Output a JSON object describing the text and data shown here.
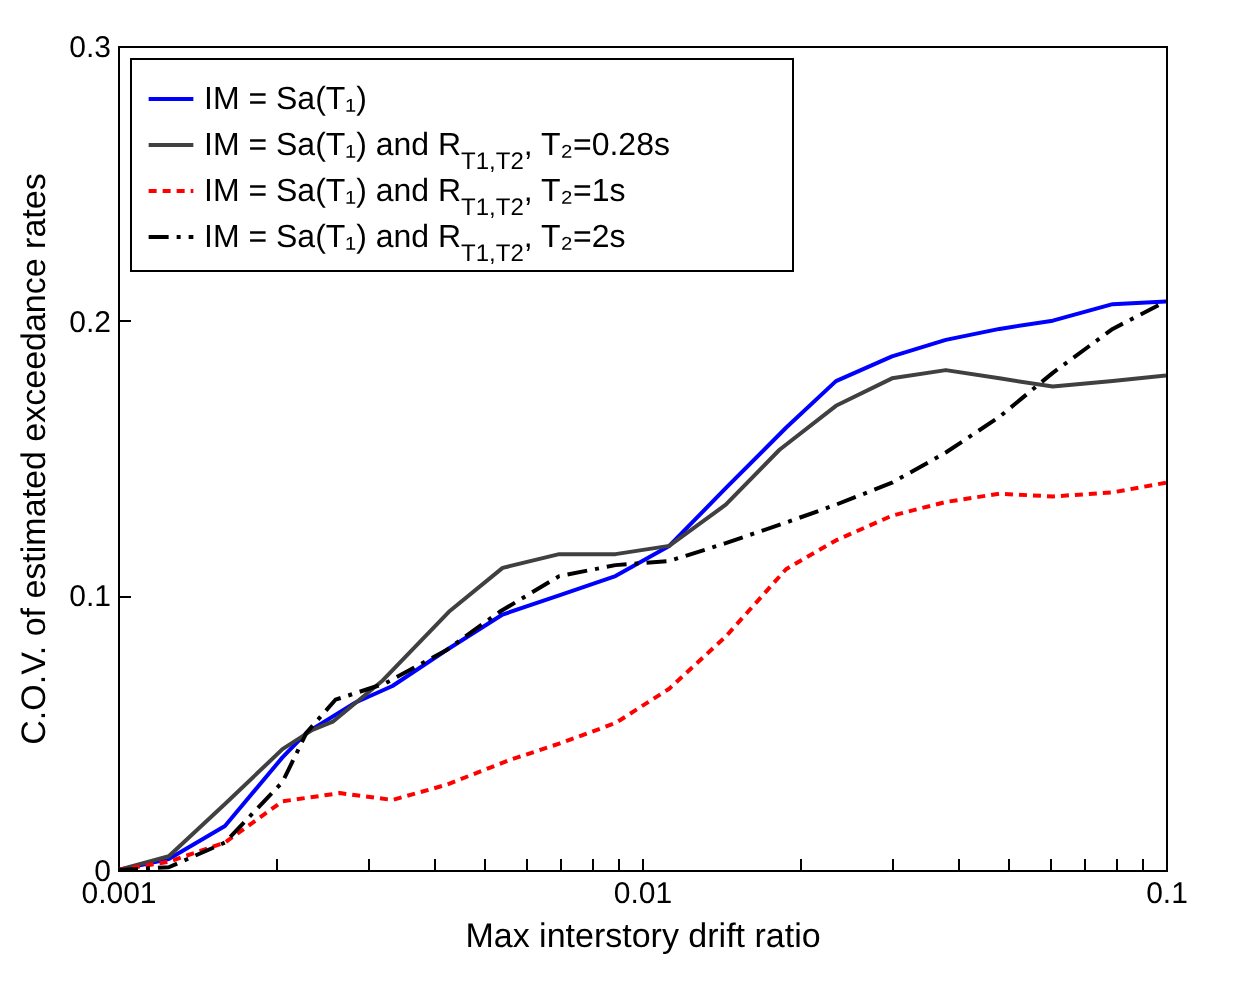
{
  "chart_data": {
    "type": "line",
    "xlabel": "Max interstory drift ratio",
    "ylabel": "C.O.V. of estimated exceedance rates",
    "log": "x",
    "xlim": [
      0.001,
      0.1
    ],
    "ylim": [
      0,
      0.3
    ],
    "xticks": [
      0.001,
      {
        "value": 0.002,
        "label": null
      },
      {
        "value": 0.003,
        "label": null
      },
      {
        "value": 0.004,
        "label": null
      },
      {
        "value": 0.005,
        "label": null
      },
      {
        "value": 0.006,
        "label": null
      },
      {
        "value": 0.007,
        "label": null
      },
      {
        "value": 0.008,
        "label": null
      },
      {
        "value": 0.009,
        "label": null
      },
      0.01,
      {
        "value": 0.02,
        "label": null
      },
      {
        "value": 0.03,
        "label": null
      },
      {
        "value": 0.04,
        "label": null
      },
      {
        "value": 0.05,
        "label": null
      },
      {
        "value": 0.06,
        "label": null
      },
      {
        "value": 0.07,
        "label": null
      },
      {
        "value": 0.08,
        "label": null
      },
      {
        "value": 0.09,
        "label": null
      },
      0.1
    ],
    "yticks": [
      0,
      0.1,
      0.2,
      0.3
    ],
    "grid": false,
    "legend": "top left",
    "series": [
      {
        "name": "IM = Sa(T₁)",
        "color": "#0000ff",
        "line_style": "solid",
        "x": [
          0.001,
          0.00125,
          0.0016,
          0.00206,
          0.00229,
          0.00284,
          0.00334,
          0.00423,
          0.00542,
          0.00695,
          0.0089,
          0.01127,
          0.01445,
          0.01883,
          0.02345,
          0.03,
          0.038,
          0.0481,
          0.0608,
          0.0791,
          0.1
        ],
        "values": [
          0,
          0.004,
          0.016,
          0.041,
          0.05,
          0.061,
          0.067,
          0.08,
          0.093,
          0.1,
          0.107,
          0.118,
          0.139,
          0.161,
          0.178,
          0.187,
          0.193,
          0.197,
          0.2,
          0.206,
          0.207
        ]
      },
      {
        "name": "IM = Sa(T₁) and R$_{T1,T2}$,  T₂=0.28s",
        "color": "#404040",
        "line_style": "solid",
        "x": [
          0.001,
          0.00125,
          0.0016,
          0.00206,
          0.00235,
          0.00257,
          0.0032,
          0.00428,
          0.00542,
          0.00695,
          0.0089,
          0.01127,
          0.01445,
          0.0183,
          0.02345,
          0.03,
          0.038,
          0.0481,
          0.0608,
          0.0791,
          0.1
        ],
        "values": [
          0,
          0.005,
          0.024,
          0.044,
          0.051,
          0.054,
          0.069,
          0.094,
          0.11,
          0.115,
          0.115,
          0.118,
          0.133,
          0.153,
          0.169,
          0.179,
          0.182,
          0.179,
          0.176,
          0.178,
          0.18
        ]
      },
      {
        "name": "IM = Sa(T₁) and R$_{T1,T2}$,  T₂=1s",
        "color": "#ff0000",
        "line_style": "dashed",
        "x": [
          0.001,
          0.00125,
          0.0016,
          0.00206,
          0.00265,
          0.00334,
          0.00423,
          0.00558,
          0.00695,
          0.0089,
          0.01127,
          0.01445,
          0.01883,
          0.02345,
          0.03,
          0.038,
          0.0481,
          0.0608,
          0.0791,
          0.1
        ],
        "values": [
          0,
          0.003,
          0.01,
          0.025,
          0.028,
          0.0255,
          0.031,
          0.04,
          0.046,
          0.0535,
          0.066,
          0.085,
          0.1095,
          0.12,
          0.129,
          0.134,
          0.137,
          0.136,
          0.1375,
          0.141
        ]
      },
      {
        "name": "IM = Sa(T₁) and R$_{T1,T2}$,  T₂=2s",
        "color": "#000000",
        "line_style": "dashdot",
        "x": [
          0.001,
          0.00125,
          0.0016,
          0.00206,
          0.00229,
          0.0026,
          0.00324,
          0.00423,
          0.00535,
          0.00695,
          0.0089,
          0.01127,
          0.01445,
          0.01883,
          0.02345,
          0.03,
          0.038,
          0.0481,
          0.0608,
          0.0791,
          0.1
        ],
        "values": [
          0,
          0.001,
          0.01,
          0.032,
          0.05,
          0.062,
          0.068,
          0.08,
          0.094,
          0.107,
          0.111,
          0.1125,
          0.119,
          0.1265,
          0.133,
          0.141,
          0.152,
          0.165,
          0.181,
          0.197,
          0.207
        ]
      }
    ]
  }
}
